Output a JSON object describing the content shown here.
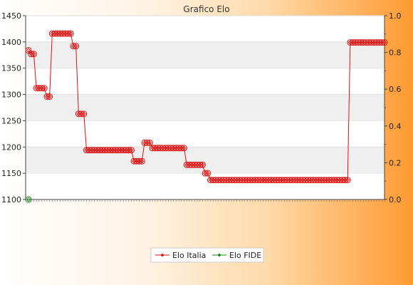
{
  "chart_data": {
    "type": "line",
    "title": "Grafico Elo",
    "xlabel": "",
    "ylabel": "",
    "ylim": [
      1100,
      1450
    ],
    "y_ticks": [
      1100,
      1150,
      1200,
      1250,
      1300,
      1350,
      1400,
      1450
    ],
    "y2lim": [
      0.0,
      1.0
    ],
    "y2_ticks": [
      "0.0",
      "0.2",
      "0.4",
      "0.6",
      "0.8",
      "1.0"
    ],
    "grid": "horizontal bands",
    "legend": "bottom-center",
    "series": [
      {
        "name": "Elo Italia",
        "color": "#dd1111",
        "values": [
          1384,
          1377,
          1377,
          1312,
          1312,
          1312,
          1312,
          1296,
          1296,
          1416,
          1416,
          1416,
          1416,
          1416,
          1416,
          1416,
          1416,
          1392,
          1392,
          1263,
          1263,
          1263,
          1194,
          1194,
          1194,
          1194,
          1194,
          1194,
          1194,
          1194,
          1194,
          1194,
          1194,
          1194,
          1194,
          1194,
          1194,
          1194,
          1194,
          1194,
          1173,
          1173,
          1173,
          1173,
          1208,
          1208,
          1208,
          1198,
          1198,
          1198,
          1198,
          1198,
          1198,
          1198,
          1198,
          1198,
          1198,
          1198,
          1198,
          1198,
          1166,
          1166,
          1166,
          1166,
          1166,
          1166,
          1166,
          1150,
          1150,
          1137,
          1137,
          1137,
          1137,
          1137,
          1137,
          1137,
          1137,
          1137,
          1137,
          1137,
          1137,
          1137,
          1137,
          1137,
          1137,
          1137,
          1137,
          1137,
          1137,
          1137,
          1137,
          1137,
          1137,
          1137,
          1137,
          1137,
          1137,
          1137,
          1137,
          1137,
          1137,
          1137,
          1137,
          1137,
          1137,
          1137,
          1137,
          1137,
          1137,
          1137,
          1137,
          1137,
          1137,
          1137,
          1137,
          1137,
          1137,
          1137,
          1137,
          1137,
          1137,
          1137,
          1399,
          1399,
          1399,
          1399,
          1399,
          1399,
          1399,
          1399,
          1399,
          1399,
          1399,
          1399,
          1399,
          1399
        ]
      },
      {
        "name": "Elo FIDE",
        "color": "#118811",
        "values": [
          1100
        ]
      }
    ]
  },
  "colors": {
    "band": "#efefef",
    "axis": "#444444"
  }
}
